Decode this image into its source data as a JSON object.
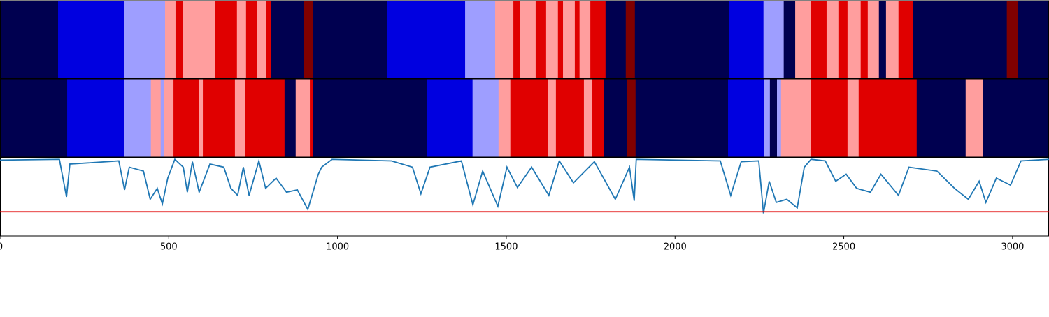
{
  "chart_data": [
    {
      "type": "segments",
      "xlim": [
        0,
        3108
      ],
      "starts": [
        0,
        172,
        367,
        489,
        520,
        541,
        638,
        702,
        729,
        762,
        789,
        802,
        901,
        928,
        1146,
        1378,
        1467,
        1521,
        1541,
        1587,
        1618,
        1653,
        1668,
        1703,
        1717,
        1749,
        1794,
        1854,
        1881,
        2161,
        2262,
        2322,
        2356,
        2403,
        2449,
        2484,
        2511,
        2550,
        2571,
        2604,
        2625,
        2662,
        2706,
        2983,
        3016
      ],
      "colors": [
        "#000050",
        "#0000e0",
        "#9e9eff",
        "#ff9e9e",
        "#e00000",
        "#ff9e9e",
        "#e00000",
        "#ff9e9e",
        "#e00000",
        "#ff9e9e",
        "#e00000",
        "#000050",
        "#800000",
        "#000050",
        "#0000e0",
        "#9e9eff",
        "#ff9e9e",
        "#e00000",
        "#ff9e9e",
        "#e00000",
        "#ff9e9e",
        "#e00000",
        "#ff9e9e",
        "#e00000",
        "#ff9e9e",
        "#e00000",
        "#000050",
        "#800000",
        "#000050",
        "#0000e0",
        "#9e9eff",
        "#000050",
        "#ff9e9e",
        "#e00000",
        "#ff9e9e",
        "#e00000",
        "#ff9e9e",
        "#e00000",
        "#ff9e9e",
        "#000050",
        "#ff9e9e",
        "#e00000",
        "#000050",
        "#800000",
        "#000050"
      ]
    },
    {
      "type": "segments",
      "xlim": [
        0,
        3108
      ],
      "starts": [
        0,
        199,
        367,
        447,
        476,
        485,
        514,
        590,
        601,
        696,
        727,
        843,
        876,
        918,
        928,
        1266,
        1400,
        1477,
        1512,
        1624,
        1647,
        1730,
        1755,
        1790,
        1858,
        1883,
        2157,
        2264,
        2281,
        2302,
        2314,
        2403,
        2511,
        2544,
        2716,
        2861,
        2913
      ],
      "colors": [
        "#000050",
        "#0000e0",
        "#9e9eff",
        "#ff9e9e",
        "#9e9eff",
        "#ff9e9e",
        "#e00000",
        "#ff9e9e",
        "#e00000",
        "#ff9e9e",
        "#e00000",
        "#000050",
        "#ff9e9e",
        "#e00000",
        "#000050",
        "#0000e0",
        "#9e9eff",
        "#ff9e9e",
        "#e00000",
        "#ff9e9e",
        "#e00000",
        "#ff9e9e",
        "#e00000",
        "#000050",
        "#800000",
        "#000050",
        "#0000e0",
        "#9e9eff",
        "#000050",
        "#9e9eff",
        "#ff9e9e",
        "#e00000",
        "#ff9e9e",
        "#e00000",
        "#000050",
        "#ff9e9e",
        "#000050"
      ]
    },
    {
      "type": "line",
      "xlim": [
        0,
        3108
      ],
      "ylim": [
        0,
        1
      ],
      "xticks": [
        0,
        500,
        1000,
        1500,
        2000,
        2500,
        3000
      ],
      "color": "#1f77b4",
      "hline": 0.31,
      "hline_color": "#e00000",
      "x": [
        0,
        176,
        197,
        207,
        352,
        369,
        383,
        425,
        445,
        466,
        481,
        497,
        518,
        543,
        555,
        570,
        590,
        622,
        663,
        684,
        704,
        721,
        738,
        767,
        787,
        818,
        849,
        881,
        912,
        943,
        953,
        984,
        1160,
        1222,
        1247,
        1274,
        1367,
        1401,
        1430,
        1475,
        1502,
        1533,
        1575,
        1626,
        1657,
        1699,
        1761,
        1823,
        1865,
        1879,
        1885,
        2134,
        2165,
        2196,
        2248,
        2262,
        2279,
        2300,
        2331,
        2362,
        2383,
        2403,
        2445,
        2476,
        2507,
        2538,
        2579,
        2610,
        2662,
        2693,
        2776,
        2828,
        2869,
        2901,
        2921,
        2952,
        2994,
        3025,
        3108
      ],
      "values": [
        0.97,
        0.98,
        0.5,
        0.92,
        0.96,
        0.59,
        0.88,
        0.83,
        0.47,
        0.61,
        0.41,
        0.74,
        0.98,
        0.88,
        0.56,
        0.95,
        0.56,
        0.92,
        0.88,
        0.61,
        0.52,
        0.88,
        0.52,
        0.96,
        0.61,
        0.74,
        0.56,
        0.59,
        0.34,
        0.79,
        0.88,
        0.98,
        0.96,
        0.88,
        0.54,
        0.88,
        0.96,
        0.4,
        0.83,
        0.38,
        0.88,
        0.62,
        0.88,
        0.52,
        0.96,
        0.68,
        0.95,
        0.47,
        0.88,
        0.45,
        0.98,
        0.96,
        0.52,
        0.95,
        0.96,
        0.29,
        0.7,
        0.43,
        0.47,
        0.36,
        0.88,
        0.98,
        0.96,
        0.7,
        0.79,
        0.61,
        0.56,
        0.79,
        0.52,
        0.88,
        0.83,
        0.61,
        0.47,
        0.7,
        0.43,
        0.74,
        0.65,
        0.96,
        0.98
      ]
    }
  ]
}
